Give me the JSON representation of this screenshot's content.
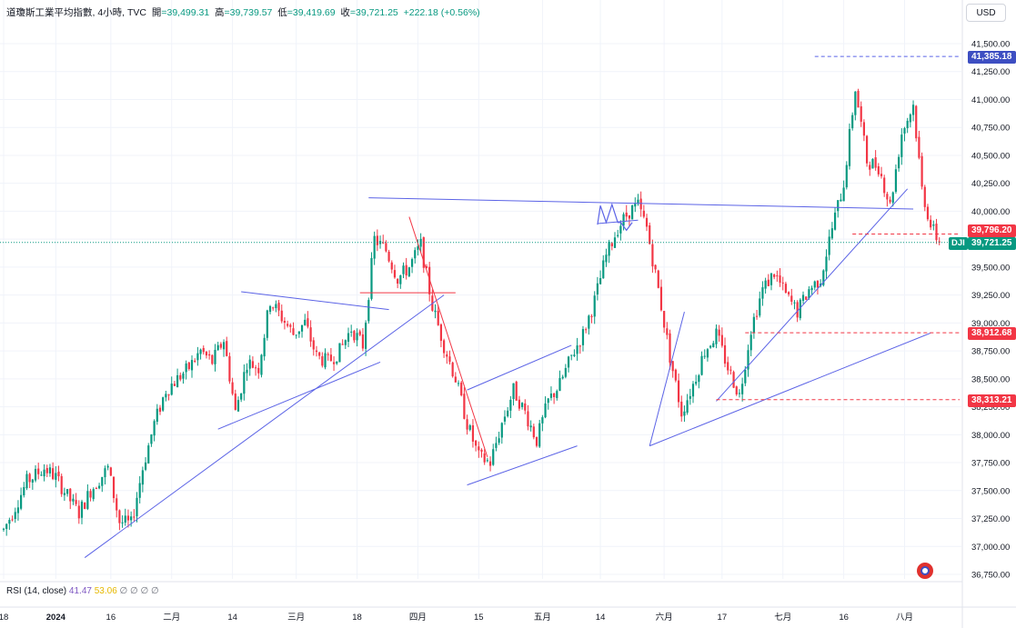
{
  "header": {
    "symbol": "道瓊斯工業平均指數, 4小時, TVC",
    "open_label": "開",
    "open_value": "=39,499.31",
    "high_label": "高",
    "high_value": "=39,739.57",
    "low_label": "低",
    "low_value": "=39,419.69",
    "close_label": "收",
    "close_value": "=39,721.25",
    "change": "+222.18 (+0.56%)"
  },
  "currency": "USD",
  "rsi": {
    "label": "RSI (14, close)",
    "value": "41.47",
    "ma_value": "53.06",
    "extras": "∅ ∅ ∅ ∅"
  },
  "ticker": "DJI",
  "price_tags": [
    {
      "text": "41,385.18",
      "value": 41385.18,
      "color": "#3d4ec2"
    },
    {
      "text": "39,796.20",
      "value": 39796.2,
      "color": "#f23645"
    },
    {
      "text": "39,721.25",
      "value": 39721.25,
      "color": "#089981"
    },
    {
      "text": "38,912.68",
      "value": 38912.68,
      "color": "#f23645"
    },
    {
      "text": "38,313.21",
      "value": 38313.21,
      "color": "#f23645"
    }
  ],
  "colors": {
    "up": "#089981",
    "down": "#f23645",
    "drawing": "#5b63e6",
    "red_drawing": "#f23645"
  },
  "chart_data": {
    "type": "candlestick",
    "title": "",
    "y_tick_labels": [
      "41,500.00",
      "41,250.00",
      "41,000.00",
      "40,750.00",
      "40,500.00",
      "40,250.00",
      "40,000.00",
      "39,750.00",
      "39,500.00",
      "39,250.00",
      "39,000.00",
      "38,750.00",
      "38,500.00",
      "38,250.00",
      "38,000.00",
      "37,750.00",
      "37,500.00",
      "37,250.00",
      "37,000.00",
      "36,750.00"
    ],
    "y_ticks": [
      41500,
      41250,
      41000,
      40750,
      40500,
      40250,
      40000,
      39750,
      39500,
      39250,
      39000,
      38750,
      38500,
      38250,
      38000,
      37750,
      37500,
      37250,
      37000,
      36750
    ],
    "ylim": [
      36700,
      41750
    ],
    "x_tick_labels": [
      "18",
      "2024",
      "16",
      "二月",
      "14",
      "三月",
      "18",
      "四月",
      "15",
      "五月",
      "14",
      "六月",
      "17",
      "七月",
      "16",
      "八月"
    ],
    "x_tick_index": [
      0,
      18,
      37,
      58,
      79,
      101,
      122,
      143,
      164,
      186,
      206,
      228,
      248,
      269,
      290,
      311
    ],
    "bold_x_labels": [
      "2024"
    ],
    "candle_count": 330,
    "series_points": [
      [
        0,
        37150
      ],
      [
        3,
        37300
      ],
      [
        8,
        37580
      ],
      [
        14,
        37700
      ],
      [
        18,
        37620
      ],
      [
        22,
        37450
      ],
      [
        26,
        37300
      ],
      [
        30,
        37500
      ],
      [
        36,
        37700
      ],
      [
        40,
        37220
      ],
      [
        44,
        37200
      ],
      [
        48,
        37700
      ],
      [
        52,
        38100
      ],
      [
        56,
        38400
      ],
      [
        60,
        38500
      ],
      [
        64,
        38600
      ],
      [
        68,
        38750
      ],
      [
        72,
        38650
      ],
      [
        76,
        38850
      ],
      [
        80,
        38200
      ],
      [
        84,
        38650
      ],
      [
        88,
        38600
      ],
      [
        92,
        39200
      ],
      [
        96,
        39050
      ],
      [
        100,
        38900
      ],
      [
        104,
        39000
      ],
      [
        108,
        38700
      ],
      [
        112,
        38650
      ],
      [
        116,
        38750
      ],
      [
        120,
        38950
      ],
      [
        124,
        38800
      ],
      [
        128,
        39750
      ],
      [
        132,
        39650
      ],
      [
        136,
        39400
      ],
      [
        140,
        39500
      ],
      [
        144,
        39700
      ],
      [
        148,
        39150
      ],
      [
        152,
        38800
      ],
      [
        156,
        38500
      ],
      [
        160,
        38100
      ],
      [
        164,
        37800
      ],
      [
        168,
        37750
      ],
      [
        172,
        38100
      ],
      [
        176,
        38400
      ],
      [
        180,
        38200
      ],
      [
        184,
        37950
      ],
      [
        188,
        38300
      ],
      [
        192,
        38450
      ],
      [
        196,
        38700
      ],
      [
        200,
        38900
      ],
      [
        204,
        39200
      ],
      [
        208,
        39600
      ],
      [
        212,
        39850
      ],
      [
        216,
        40000
      ],
      [
        219,
        40050
      ],
      [
        222,
        39850
      ],
      [
        226,
        39300
      ],
      [
        230,
        38700
      ],
      [
        234,
        38200
      ],
      [
        238,
        38450
      ],
      [
        242,
        38750
      ],
      [
        246,
        38900
      ],
      [
        250,
        38600
      ],
      [
        254,
        38350
      ],
      [
        258,
        38950
      ],
      [
        262,
        39300
      ],
      [
        266,
        39450
      ],
      [
        270,
        39250
      ],
      [
        274,
        39100
      ],
      [
        278,
        39300
      ],
      [
        282,
        39400
      ],
      [
        286,
        39850
      ],
      [
        290,
        40250
      ],
      [
        294,
        41100
      ],
      [
        298,
        40450
      ],
      [
        302,
        40400
      ],
      [
        306,
        40050
      ],
      [
        310,
        40700
      ],
      [
        314,
        40950
      ],
      [
        317,
        40200
      ],
      [
        320,
        39870
      ],
      [
        323,
        39720
      ]
    ],
    "drawings": [
      {
        "kind": "trendline",
        "color": "blue",
        "from": [
          28,
          36900
        ],
        "to": [
          152,
          39250
        ]
      },
      {
        "kind": "trendline",
        "color": "blue",
        "from": [
          74,
          38050
        ],
        "to": [
          130,
          38650
        ]
      },
      {
        "kind": "trendline",
        "color": "blue",
        "from": [
          82,
          39280
        ],
        "to": [
          133,
          39120
        ]
      },
      {
        "kind": "trendline",
        "color": "blue",
        "from": [
          126,
          40120
        ],
        "to": [
          314,
          40020
        ]
      },
      {
        "kind": "trendline",
        "color": "red",
        "from": [
          140,
          39950
        ],
        "to": [
          167,
          37800
        ]
      },
      {
        "kind": "trendline",
        "color": "red",
        "from": [
          123,
          39270
        ],
        "to": [
          156,
          39270
        ]
      },
      {
        "kind": "trendline",
        "color": "blue",
        "from": [
          160,
          37550
        ],
        "to": [
          198,
          37900
        ]
      },
      {
        "kind": "trendline",
        "color": "blue",
        "from": [
          160,
          38400
        ],
        "to": [
          196,
          38800
        ]
      },
      {
        "kind": "trendline",
        "color": "blue",
        "from": [
          223,
          37900
        ],
        "to": [
          320,
          38910
        ]
      },
      {
        "kind": "trendline",
        "color": "blue",
        "from": [
          223,
          37900
        ],
        "to": [
          235,
          39100
        ]
      },
      {
        "kind": "trendline",
        "color": "blue",
        "from": [
          246,
          38300
        ],
        "to": [
          312,
          40200
        ]
      },
      {
        "kind": "trendline",
        "color": "blue",
        "from": [
          205,
          39890
        ],
        "to": [
          219,
          39920
        ]
      },
      {
        "kind": "hline",
        "color": "blue",
        "from": [
          280,
          41385.18
        ],
        "to": [
          330,
          41385.18
        ]
      },
      {
        "kind": "hline",
        "color": "red",
        "from": [
          293,
          39796.2
        ],
        "to": [
          330,
          39796.2
        ]
      },
      {
        "kind": "hline",
        "color": "red",
        "from": [
          256,
          38912.68
        ],
        "to": [
          330,
          38912.68
        ]
      },
      {
        "kind": "hline",
        "color": "red",
        "from": [
          246,
          38313.21
        ],
        "to": [
          330,
          38313.21
        ]
      },
      {
        "kind": "hline",
        "color": "green",
        "from": [
          0,
          39721.25
        ],
        "to": [
          330,
          39721.25
        ]
      }
    ],
    "pattern_mark": {
      "kind": "polyline",
      "color": "blue",
      "points": [
        [
          205,
          39880
        ],
        [
          206,
          40050
        ],
        [
          208,
          39900
        ],
        [
          210,
          40060
        ],
        [
          212,
          39900
        ],
        [
          213,
          39900
        ],
        [
          215,
          39830
        ],
        [
          217,
          39900
        ]
      ]
    }
  }
}
